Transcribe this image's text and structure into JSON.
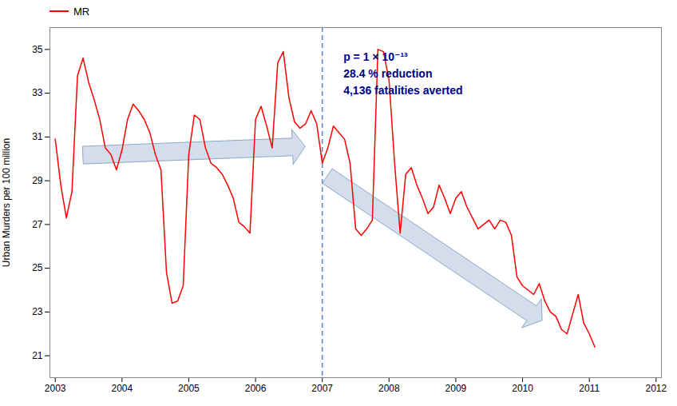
{
  "chart_data": {
    "type": "line",
    "ylabel": "Urban Murders per 100 million",
    "x": [
      2003,
      2003.08333,
      2003.16666,
      2003.24999,
      2003.33332,
      2003.41665,
      2003.49998,
      2003.58331,
      2003.66664,
      2003.74997,
      2003.8333,
      2003.91663,
      2003.99996,
      2004.08329,
      2004.16662,
      2004.24995,
      2004.33328,
      2004.41661,
      2004.49994,
      2004.58327,
      2004.6666,
      2004.74993,
      2004.83326,
      2004.91659,
      2004.99992,
      2005.08325,
      2005.16658,
      2005.24991,
      2005.33324,
      2005.41657,
      2005.4999,
      2005.58323,
      2005.66656,
      2005.74989,
      2005.83322,
      2005.91655,
      2005.99988,
      2006.08321,
      2006.16654,
      2006.24987,
      2006.3332,
      2006.41653,
      2006.49986,
      2006.58319,
      2006.66652,
      2006.74985,
      2006.83318,
      2006.91651,
      2006.99984,
      2007.08317,
      2007.1665,
      2007.24983,
      2007.33316,
      2007.41649,
      2007.49982,
      2007.58315,
      2007.66648,
      2007.74981,
      2007.83314,
      2007.91647,
      2007.9998,
      2008.08313,
      2008.16646,
      2008.24979,
      2008.33312,
      2008.41645,
      2008.49978,
      2008.58311,
      2008.66644,
      2008.74977,
      2008.8331,
      2008.91643,
      2008.99976,
      2009.08309,
      2009.16642,
      2009.24975,
      2009.33308,
      2009.41641,
      2009.49974,
      2009.58307,
      2009.6664,
      2009.74973,
      2009.83306,
      2009.91639,
      2009.99972,
      2010.08305,
      2010.16638,
      2010.24971,
      2010.33304,
      2010.41637,
      2010.4997,
      2010.58303,
      2010.66636,
      2010.74969,
      2010.83302,
      2010.91635,
      2010.99968,
      2011.08301
    ],
    "series": [
      {
        "name": "MR",
        "color": "#ff0000",
        "values": [
          30.9,
          28.8,
          27.3,
          28.5,
          33.8,
          34.6,
          33.5,
          32.7,
          31.8,
          30.5,
          30.2,
          29.5,
          30.4,
          31.8,
          32.5,
          32.2,
          31.8,
          31.2,
          30.2,
          29.5,
          24.8,
          23.4,
          23.5,
          24.2,
          30.2,
          32.0,
          31.8,
          30.5,
          29.8,
          29.6,
          29.3,
          28.8,
          28.2,
          27.1,
          26.9,
          26.6,
          31.8,
          32.4,
          31.5,
          30.5,
          34.4,
          34.9,
          32.8,
          31.7,
          31.4,
          31.6,
          32.2,
          31.6,
          29.8,
          30.5,
          31.5,
          31.2,
          30.9,
          29.8,
          26.8,
          26.5,
          26.8,
          27.2,
          35.0,
          34.9,
          33.6,
          29.8,
          26.6,
          29.3,
          29.6,
          28.8,
          28.2,
          27.5,
          27.8,
          28.8,
          28.2,
          27.5,
          28.2,
          28.5,
          27.8,
          27.3,
          26.8,
          27.0,
          27.2,
          26.8,
          27.2,
          27.1,
          26.5,
          24.6,
          24.2,
          24.0,
          23.8,
          24.3,
          23.5,
          23.0,
          22.8,
          22.2,
          22.0,
          22.9,
          23.8,
          22.5,
          22.0,
          21.4
        ]
      }
    ],
    "xlim": [
      2002.92,
      2012.08
    ],
    "xticks": [
      2003,
      2004,
      2005,
      2006,
      2007,
      2008,
      2009,
      2010,
      2011,
      2012
    ],
    "ylim": [
      20.0,
      36.0
    ],
    "yticks": [
      21,
      23,
      25,
      27,
      29,
      31,
      33,
      35
    ],
    "grid": false,
    "legend": "upper left",
    "annotations": [
      {
        "text": "p = 1 × 10⁻¹³\n28.4 % reduction\n4,136 fatalities averted",
        "color": "#00008B"
      }
    ],
    "reference_lines": [
      {
        "x": 2007.0,
        "color": "#6688cc",
        "line_style": "dashed"
      }
    ],
    "arrows": [
      {
        "x1": 2003.42,
        "y1": 30.15,
        "x2": 2006.75,
        "y2": 30.55,
        "color": "#ccd8e8",
        "edge_color": "#7799bb"
      },
      {
        "x1": 2007.08,
        "y1": 29.2,
        "x2": 2010.3,
        "y2": 22.6,
        "color": "#ccd8e8",
        "edge_color": "#7799bb"
      }
    ]
  }
}
